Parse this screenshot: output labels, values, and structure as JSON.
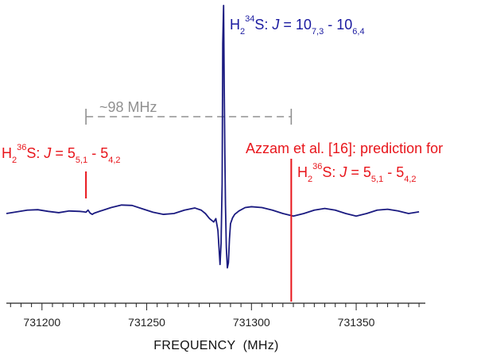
{
  "chart_data": {
    "type": "line",
    "xlabel": "FREQUENCY  (MHz)",
    "xlim": [
      731183,
      731383
    ],
    "ticks": {
      "major": [
        731200,
        731250,
        731300,
        731350
      ],
      "major_labels": [
        "731200",
        "731250",
        "731300",
        "731350"
      ],
      "minor_step": 5
    },
    "series": [
      {
        "color": "#1a1a80",
        "x": [
          731183,
          731188,
          731193,
          731198,
          731203,
          731208,
          731213,
          731218,
          731220,
          731221,
          731222,
          731223,
          731224,
          731225,
          731228,
          731233,
          731238,
          731243,
          731248,
          731253,
          731258,
          731263,
          731268,
          731273,
          731276,
          731278,
          731280,
          731282,
          731283,
          731284,
          731285,
          731285.5,
          731286,
          731286.3,
          731286.7,
          731287,
          731287.3,
          731287.6,
          731288,
          731288.5,
          731289,
          731289.5,
          731290,
          731291,
          731292,
          731294,
          731297,
          731300,
          731305,
          731310,
          731315,
          731320,
          731325,
          731330,
          731335,
          731340,
          731345,
          731350,
          731355,
          731360,
          731365,
          731370,
          731375,
          731380
        ],
        "y": [
          0.0,
          0.02,
          0.04,
          0.045,
          0.025,
          0.01,
          0.03,
          0.025,
          0.02,
          0.015,
          0.04,
          0.005,
          -0.01,
          0.005,
          0.03,
          0.07,
          0.1,
          0.095,
          0.055,
          0.015,
          -0.01,
          0.0,
          0.04,
          0.065,
          0.04,
          0.0,
          -0.06,
          -0.1,
          -0.06,
          -0.2,
          -0.6,
          -0.35,
          0.35,
          2.0,
          2.45,
          1.5,
          0.7,
          0.1,
          -0.4,
          -0.64,
          -0.58,
          -0.3,
          -0.12,
          -0.05,
          -0.01,
          0.03,
          0.07,
          0.08,
          0.07,
          0.04,
          0.0,
          -0.03,
          0.0,
          0.04,
          0.06,
          0.04,
          0.0,
          -0.03,
          0.0,
          0.04,
          0.05,
          0.03,
          0.0,
          0.02
        ]
      }
    ],
    "annotations": {
      "h234s": {
        "lead": "H",
        "sub1": "2",
        "sup1": "34",
        "mid": "S: ",
        "j": "J",
        "eq": " = 10",
        "sub2": "7,3",
        "dash": " - 10",
        "sub3": "6,4",
        "color": "#1a1aa0"
      },
      "h236s_left": {
        "lead": "H",
        "sub1": "2",
        "sup1": "36",
        "mid": "S: ",
        "j": "J",
        "eq": " = 5",
        "sub2": "5,1",
        "dash": " - 5",
        "sub3": "4,2",
        "color": "#e8151b",
        "x_marker": 731221
      },
      "azzam": {
        "line1": "Azzam et al. [16]: prediction for",
        "lead": "H",
        "sub1": "2",
        "sup1": "36",
        "mid": "S: ",
        "j": "J",
        "eq": " = 5",
        "sub2": "5,1",
        "dash": " - 5",
        "sub3": "4,2",
        "color": "#e8151b",
        "x_marker": 731319
      },
      "gap": {
        "label": "~98 MHz",
        "x_from": 731221,
        "x_to": 731319,
        "color": "#909090"
      }
    }
  }
}
